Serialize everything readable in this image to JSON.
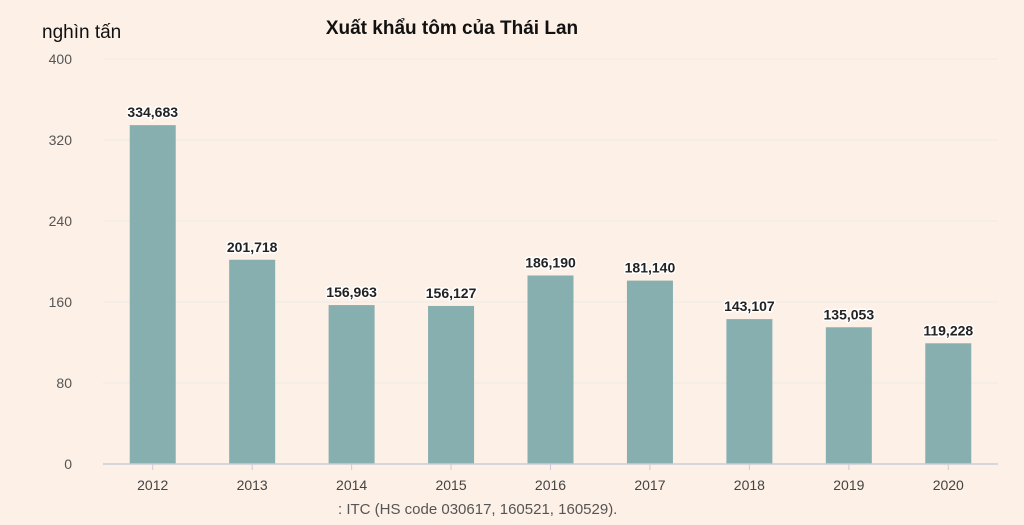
{
  "chart_data": {
    "type": "bar",
    "title": "Xuất khẩu tôm của Thái Lan",
    "ylabel": "nghìn tấn",
    "xlabel": "",
    "categories": [
      "2012",
      "2013",
      "2014",
      "2015",
      "2016",
      "2017",
      "2018",
      "2019",
      "2020"
    ],
    "values": [
      334.683,
      201.718,
      156.963,
      156.127,
      186.19,
      181.14,
      143.107,
      135.053,
      119.228
    ],
    "data_labels": [
      "334,683",
      "201,718",
      "156,963",
      "156,127",
      "186,190",
      "181,140",
      "143,107",
      "135,053",
      "119,228"
    ],
    "ylim": [
      0,
      400
    ],
    "yticks": [
      "0",
      "80",
      "160",
      "240",
      "320",
      "400"
    ],
    "grid": true,
    "legend": "none",
    "source": ": ITC (HS code 030617, 160521, 160529)."
  },
  "colors": {
    "background": "#fdf0e6",
    "bar": "#88afb0",
    "grid": "#ecebe6",
    "axis": "#c9ccd8"
  }
}
